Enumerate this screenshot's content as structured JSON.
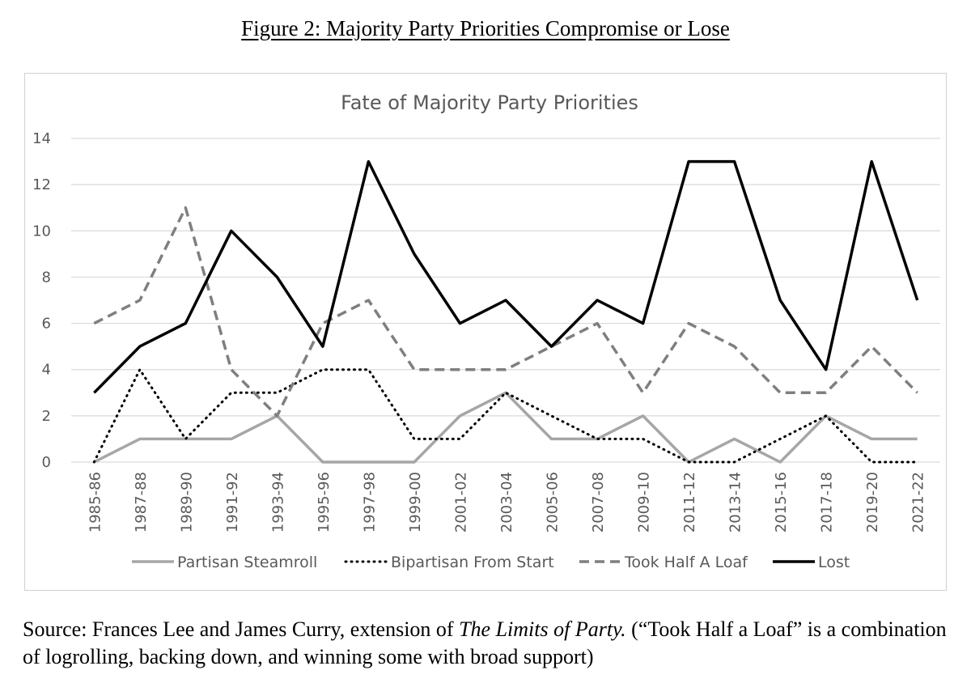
{
  "figure": {
    "title": "Figure 2: Majority Party Priorities Compromise or Lose"
  },
  "caption": {
    "prefix": "Source: Frances Lee and James Curry, extension of ",
    "book": "The Limits of Party.",
    "suffix": " (“Took Half a Loaf” is a combination of logrolling, backing down, and winning some with broad support)"
  },
  "chart_data": {
    "type": "line",
    "title": "Fate of Majority Party Priorities",
    "xlabel": "",
    "ylabel": "",
    "ylim": [
      0,
      14
    ],
    "yticks": [
      0,
      2,
      4,
      6,
      8,
      10,
      12,
      14
    ],
    "grid": true,
    "legend": "bottom",
    "categories": [
      "1985-86",
      "1987-88",
      "1989-90",
      "1991-92",
      "1993-94",
      "1995-96",
      "1997-98",
      "1999-00",
      "2001-02",
      "2003-04",
      "2005-06",
      "2007-08",
      "2009-10",
      "2011-12",
      "2013-14",
      "2015-16",
      "2017-18",
      "2019-20",
      "2021-22"
    ],
    "series": [
      {
        "name": "Partisan Steamroll",
        "style": "solid",
        "color": "#a6a6a6",
        "values": [
          0,
          1,
          1,
          1,
          2,
          0,
          0,
          0,
          2,
          3,
          1,
          1,
          2,
          0,
          1,
          0,
          2,
          1,
          1
        ]
      },
      {
        "name": "Bipartisan From Start",
        "style": "dotted",
        "color": "#000000",
        "values": [
          0,
          4,
          1,
          3,
          3,
          4,
          4,
          1,
          1,
          3,
          2,
          1,
          1,
          0,
          0,
          1,
          2,
          0,
          0
        ]
      },
      {
        "name": "Took Half A Loaf",
        "style": "dashed",
        "color": "#7f7f7f",
        "values": [
          6,
          7,
          11,
          4,
          2,
          6,
          7,
          4,
          4,
          4,
          5,
          6,
          3,
          6,
          5,
          3,
          3,
          5,
          3
        ]
      },
      {
        "name": "Lost",
        "style": "solid",
        "color": "#000000",
        "values": [
          3,
          5,
          6,
          10,
          8,
          5,
          13,
          9,
          6,
          7,
          5,
          7,
          6,
          13,
          13,
          7,
          4,
          13,
          7
        ]
      }
    ]
  }
}
